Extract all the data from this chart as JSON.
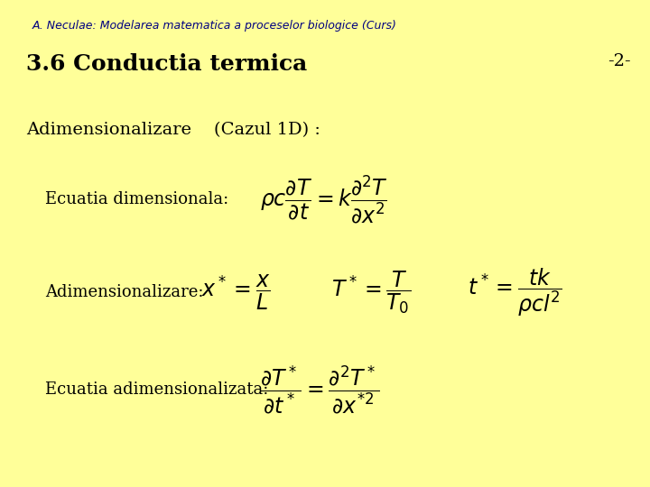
{
  "bg_color": "#FFFF99",
  "header_text": "A. Neculae: Modelarea matematica a proceselor biologice (Curs)",
  "header_color": "#000080",
  "header_fontsize": 9,
  "title_text": "3.6 Conductia termica",
  "title_fontsize": 18,
  "title_color": "#000000",
  "page_number": "-2-",
  "page_number_color": "#000000",
  "page_number_fontsize": 14,
  "section_title": "Adimensionalizare    (Cazul 1D) :",
  "section_title_fontsize": 14,
  "section_title_color": "#000000",
  "label1": "Ecuatia dimensionala:",
  "formula1": "$\\rho c\\dfrac{\\partial T}{\\partial t} = k\\dfrac{\\partial^2 T}{\\partial x^2}$",
  "label2": "Adimensionalizare:",
  "formula2a": "$x^* = \\dfrac{x}{L}$",
  "formula2b": "$T^* = \\dfrac{T}{T_0}$",
  "formula2c": "$t^* = \\dfrac{tk}{\\rho c l^2}$",
  "label3": "Ecuatia adimensionalizata:",
  "formula3": "$\\dfrac{\\partial T^*}{\\partial t^*} = \\dfrac{\\partial^2 T^*}{\\partial x^{*2}}$",
  "label_fontsize": 13,
  "formula_fontsize": 14
}
